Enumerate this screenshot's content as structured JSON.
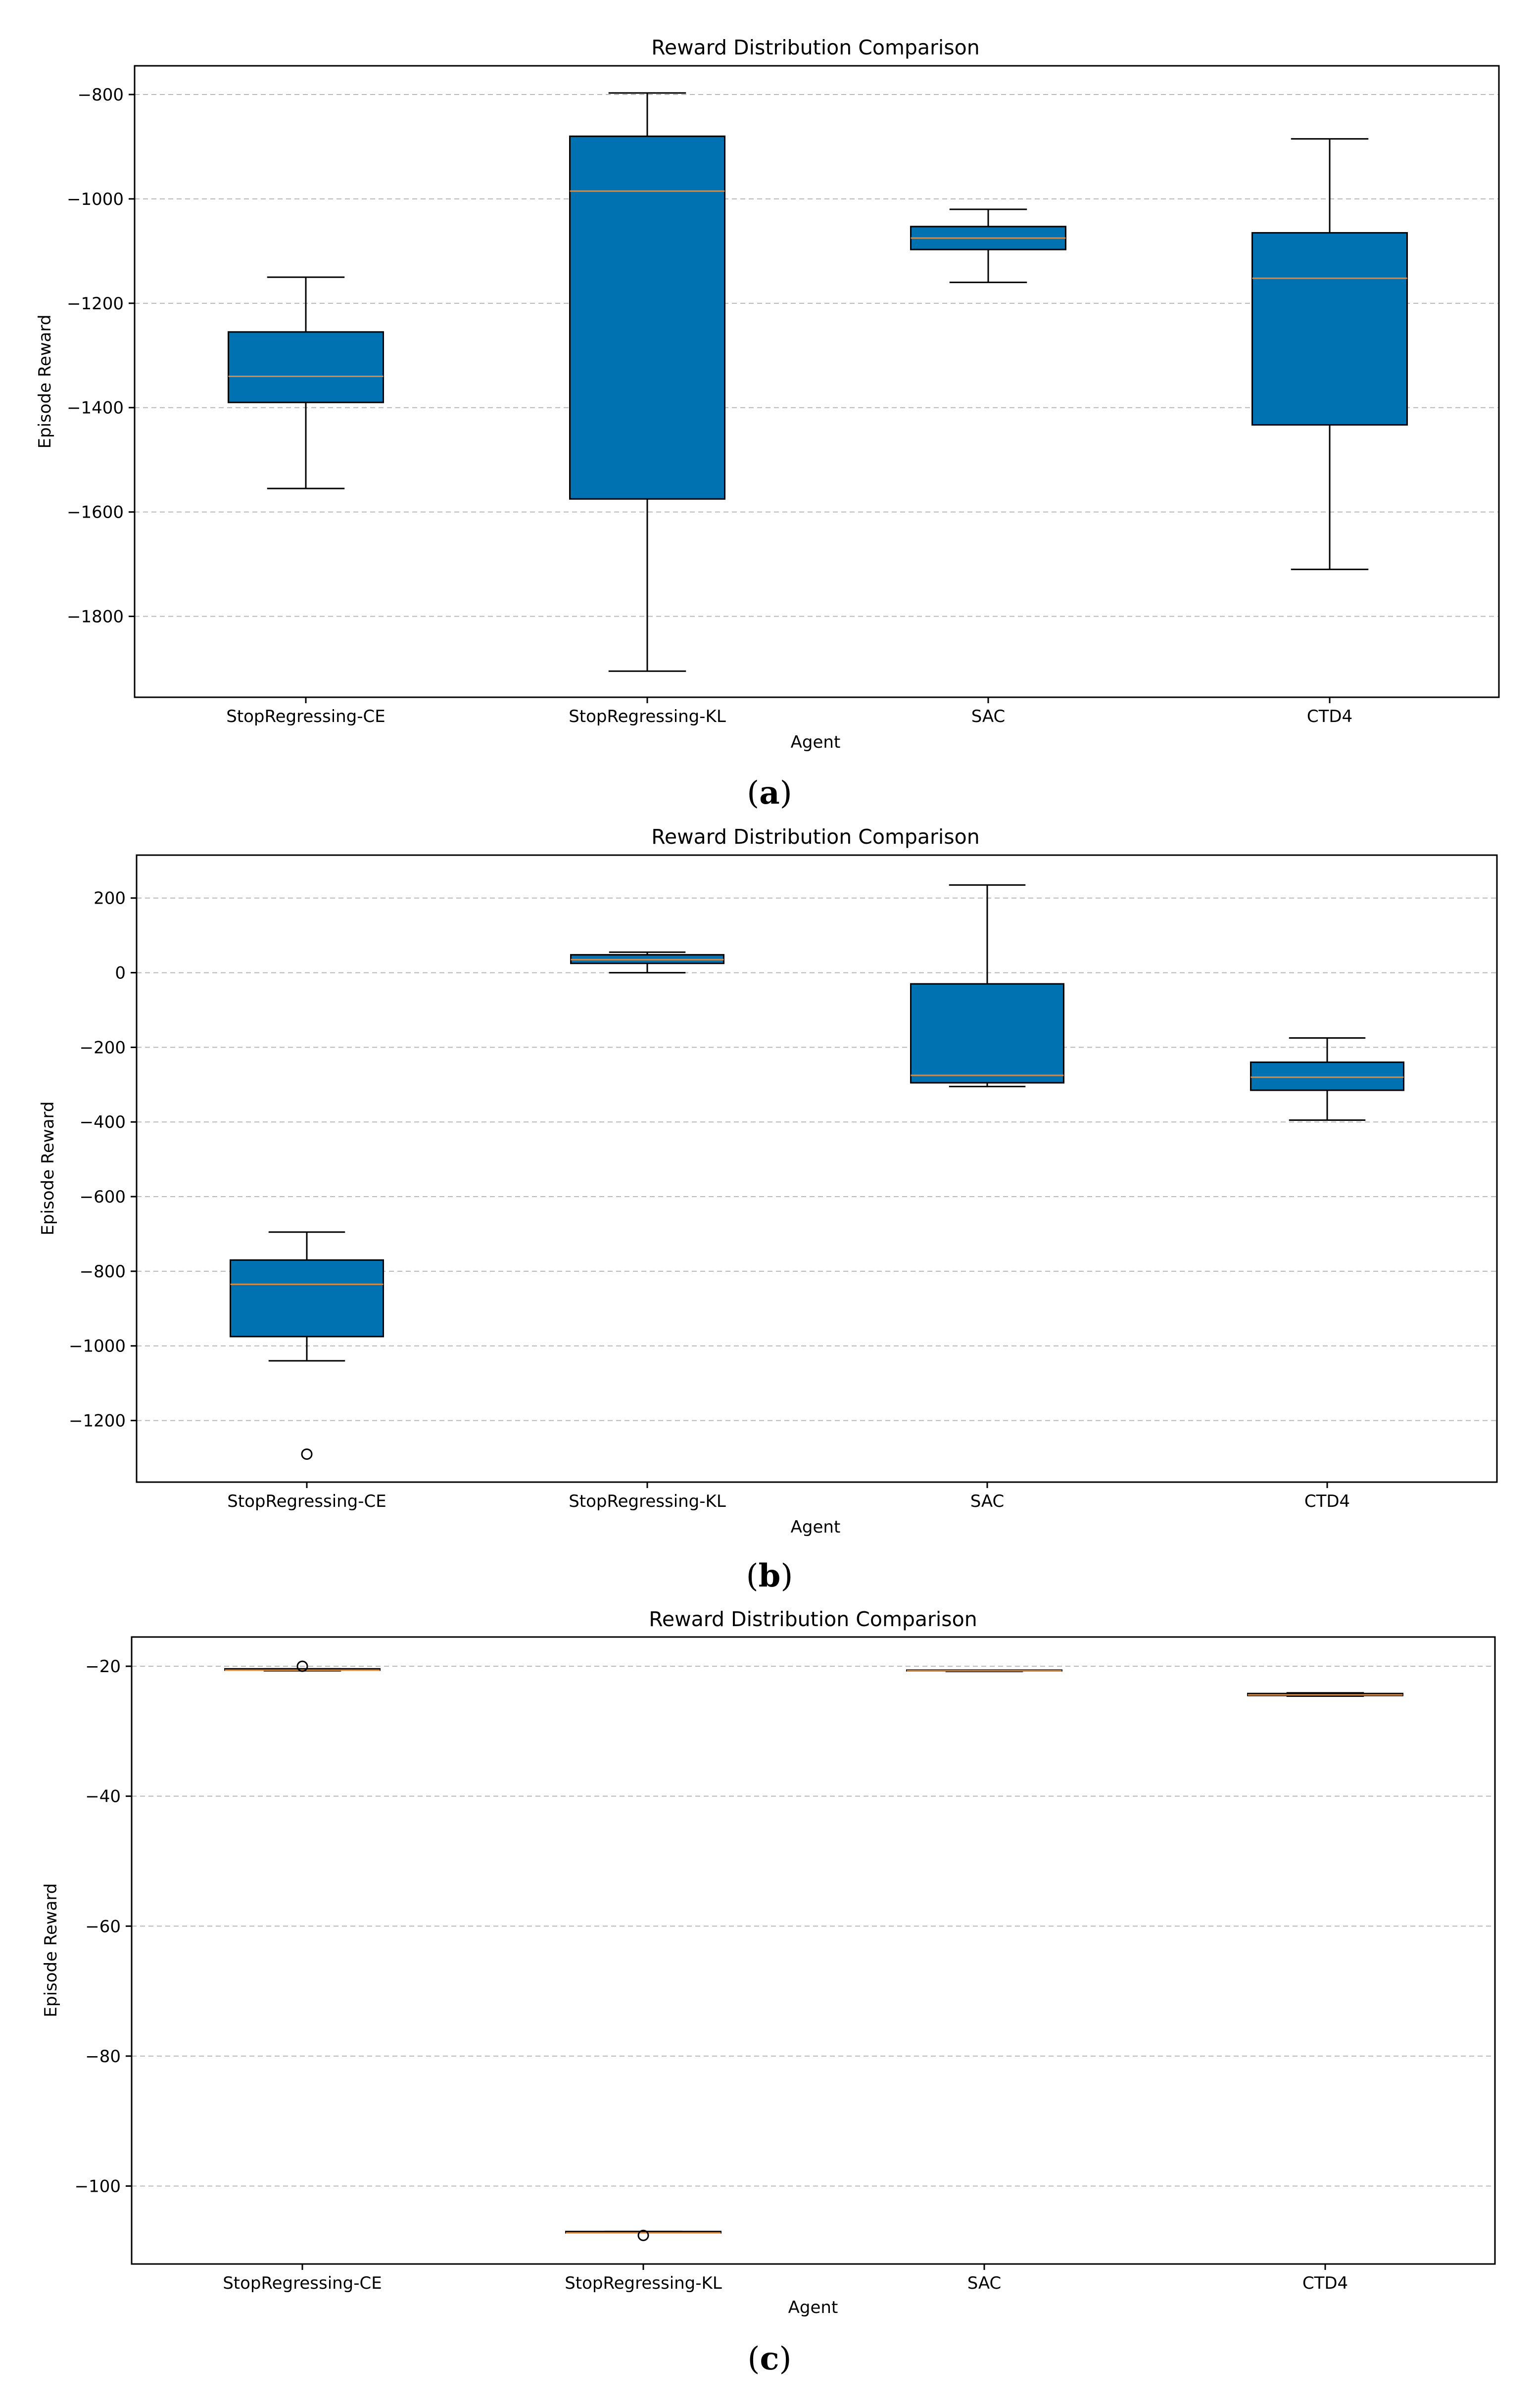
{
  "colors": {
    "box_fill": "#0072b2",
    "median": "#e0883a",
    "line": "#000000",
    "grid": "#b8b8b8"
  },
  "chart_data": [
    {
      "type": "box",
      "caption": "(a)",
      "caption_letter": "a",
      "title": "Reward Distribution Comparison",
      "xlabel": "Agent",
      "ylabel": "Episode Reward",
      "categories": [
        "StopRegressing-CE",
        "StopRegressing-KL",
        "SAC",
        "CTD4"
      ],
      "ylim": [
        -1955,
        -745
      ],
      "yticks": [
        -800,
        -1000,
        -1200,
        -1400,
        -1600,
        -1800
      ],
      "ytick_labels": [
        "−800",
        "−1000",
        "−1200",
        "−1400",
        "−1600",
        "−1800"
      ],
      "grid": true,
      "boxes": [
        {
          "whisker_low": -1555,
          "q1": -1390,
          "median": -1340,
          "q3": -1255,
          "whisker_high": -1150,
          "outliers": []
        },
        {
          "whisker_low": -1905,
          "q1": -1575,
          "median": -985,
          "q3": -880,
          "whisker_high": -797,
          "outliers": []
        },
        {
          "whisker_low": -1160,
          "q1": -1097,
          "median": -1075,
          "q3": -1053,
          "whisker_high": -1020,
          "outliers": []
        },
        {
          "whisker_low": -1710,
          "q1": -1433,
          "median": -1152,
          "q3": -1065,
          "whisker_high": -885,
          "outliers": []
        }
      ]
    },
    {
      "type": "box",
      "caption": "(b)",
      "caption_letter": "b",
      "title": "Reward Distribution Comparison",
      "xlabel": "Agent",
      "ylabel": "Episode Reward",
      "categories": [
        "StopRegressing-CE",
        "StopRegressing-KL",
        "SAC",
        "CTD4"
      ],
      "ylim": [
        -1365,
        315
      ],
      "yticks": [
        200,
        0,
        -200,
        -400,
        -600,
        -800,
        -1000,
        -1200
      ],
      "ytick_labels": [
        "200",
        "0",
        "−200",
        "−400",
        "−600",
        "−800",
        "−1000",
        "−1200"
      ],
      "grid": true,
      "boxes": [
        {
          "whisker_low": -1040,
          "q1": -975,
          "median": -835,
          "q3": -770,
          "whisker_high": -695,
          "outliers": [
            -1290
          ]
        },
        {
          "whisker_low": 0,
          "q1": 25,
          "median": 35,
          "q3": 48,
          "whisker_high": 55,
          "outliers": []
        },
        {
          "whisker_low": -305,
          "q1": -295,
          "median": -275,
          "q3": -30,
          "whisker_high": 235,
          "outliers": []
        },
        {
          "whisker_low": -395,
          "q1": -315,
          "median": -280,
          "q3": -240,
          "whisker_high": -175,
          "outliers": []
        }
      ]
    },
    {
      "type": "box",
      "caption": "(c)",
      "caption_letter": "c",
      "title": "Reward Distribution Comparison",
      "xlabel": "Agent",
      "ylabel": "Episode Reward",
      "categories": [
        "StopRegressing-CE",
        "StopRegressing-KL",
        "SAC",
        "CTD4"
      ],
      "ylim": [
        -112,
        -15.5
      ],
      "yticks": [
        -20,
        -40,
        -60,
        -80,
        -100
      ],
      "ytick_labels": [
        "−20",
        "−40",
        "−60",
        "−80",
        "−100"
      ],
      "grid": true,
      "boxes": [
        {
          "whisker_low": -20.7,
          "q1": -20.6,
          "median": -20.6,
          "q3": -20.4,
          "whisker_high": -20.4,
          "outliers": [
            -20.0
          ]
        },
        {
          "whisker_low": -107.2,
          "q1": -107.2,
          "median": -107.2,
          "q3": -107.0,
          "whisker_high": -107.0,
          "outliers": [
            -107.6
          ]
        },
        {
          "whisker_low": -20.8,
          "q1": -20.7,
          "median": -20.7,
          "q3": -20.6,
          "whisker_high": -20.6,
          "outliers": []
        },
        {
          "whisker_low": -24.6,
          "q1": -24.5,
          "median": -24.4,
          "q3": -24.2,
          "whisker_high": -24.1,
          "outliers": []
        }
      ]
    }
  ]
}
